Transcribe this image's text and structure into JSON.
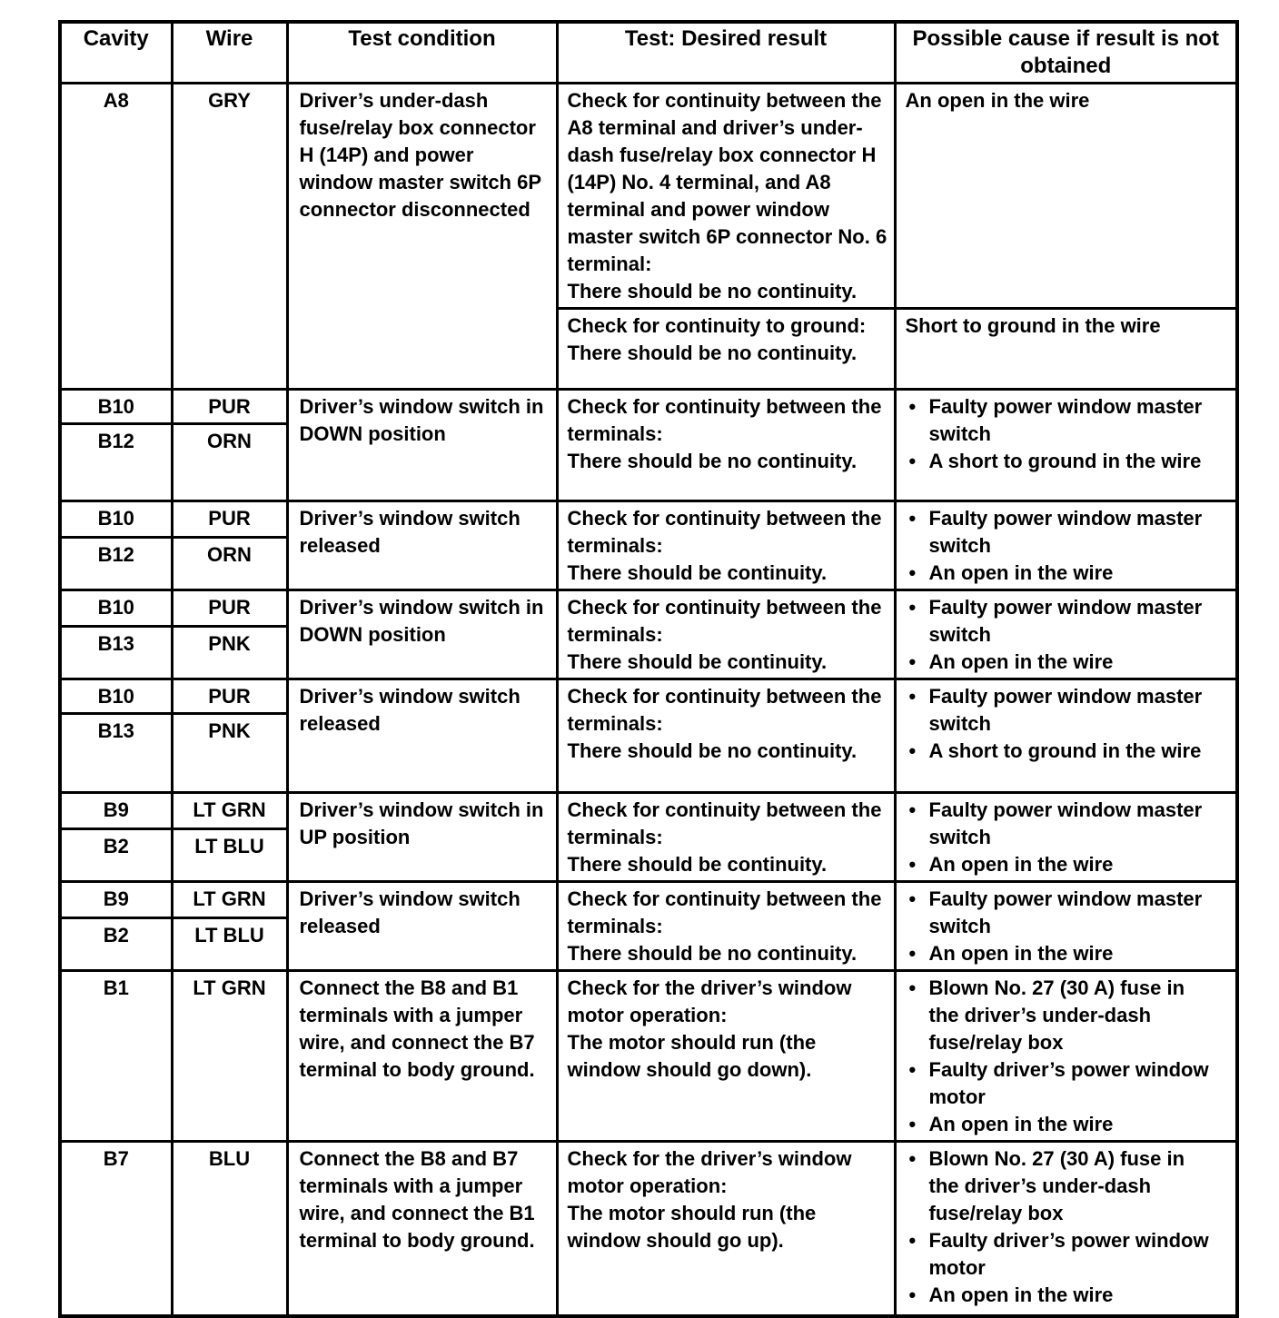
{
  "table": {
    "headers": {
      "cavity": "Cavity",
      "wire": "Wire",
      "condition": "Test condition",
      "result": "Test: Desired result",
      "cause": "Possible cause if result is not obtained"
    },
    "rows": [
      {
        "cavities": [
          "A8"
        ],
        "wires": [
          "GRY"
        ],
        "condition": "Driver’s under-dash fuse/relay box connector H (14P) and power window master switch 6P connector disconnected",
        "checks": [
          {
            "result": "Check for continuity between the A8 terminal and driver’s under-dash fuse/relay box connector H (14P) No. 4 terminal, and A8 terminal and power window master switch 6P connector No. 6 terminal:\nThere should be no continuity.",
            "cause": "An open in the wire"
          },
          {
            "result": "Check for continuity to ground:\nThere should be no continuity.",
            "cause": "Short to ground in the wire"
          }
        ]
      },
      {
        "cavities": [
          "B10",
          "B12"
        ],
        "wires": [
          "PUR",
          "ORN"
        ],
        "condition": "Driver’s window switch in DOWN position",
        "result": "Check for continuity between the terminals:\nThere should be no continuity.",
        "causes": [
          "Faulty power window master switch",
          "A short to ground in the wire"
        ]
      },
      {
        "cavities": [
          "B10",
          "B12"
        ],
        "wires": [
          "PUR",
          "ORN"
        ],
        "condition": "Driver’s window switch released",
        "result": "Check for continuity between the terminals:\nThere should be continuity.",
        "causes": [
          "Faulty power window master switch",
          "An open in the wire"
        ]
      },
      {
        "cavities": [
          "B10",
          "B13"
        ],
        "wires": [
          "PUR",
          "PNK"
        ],
        "condition": "Driver’s window switch in DOWN position",
        "result": "Check for continuity between the terminals:\nThere should be continuity.",
        "causes": [
          "Faulty power window master switch",
          "An open in the wire"
        ]
      },
      {
        "cavities": [
          "B10",
          "B13"
        ],
        "wires": [
          "PUR",
          "PNK"
        ],
        "condition": "Driver’s window switch released",
        "result": "Check for continuity between the terminals:\nThere should be no continuity.",
        "causes": [
          "Faulty power window master switch",
          "A short to ground in the wire"
        ]
      },
      {
        "cavities": [
          "B9",
          "B2"
        ],
        "wires": [
          "LT GRN",
          "LT BLU"
        ],
        "condition": "Driver’s window switch in UP position",
        "result": "Check for continuity between the terminals:\nThere should be continuity.",
        "causes": [
          "Faulty power window master switch",
          "An open in the wire"
        ]
      },
      {
        "cavities": [
          "B9",
          "B2"
        ],
        "wires": [
          "LT GRN",
          "LT BLU"
        ],
        "condition": "Driver’s window switch released",
        "result": "Check for continuity between the terminals:\nThere should be no continuity.",
        "causes": [
          "Faulty power window master switch",
          "An open in the wire"
        ]
      },
      {
        "cavities": [
          "B1"
        ],
        "wires": [
          "LT GRN"
        ],
        "condition": "Connect the B8 and B1 terminals with a jumper wire, and connect the B7 terminal to body ground.",
        "result": "Check for the driver’s window motor operation:\nThe motor should run (the window should go down).",
        "causes": [
          "Blown No. 27 (30 A) fuse in the driver’s under-dash fuse/relay box",
          "Faulty driver’s power window motor",
          "An open in the wire"
        ]
      },
      {
        "cavities": [
          "B7"
        ],
        "wires": [
          "BLU"
        ],
        "condition": "Connect the B8 and B7 terminals with a jumper wire, and connect the B1 terminal to body ground.",
        "result": "Check for the driver’s window motor operation:\nThe motor should run (the window should go up).",
        "causes": [
          "Blown No. 27 (30 A) fuse in the driver’s under-dash fuse/relay box",
          "Faulty driver’s power window motor",
          "An open in the wire"
        ]
      }
    ]
  }
}
